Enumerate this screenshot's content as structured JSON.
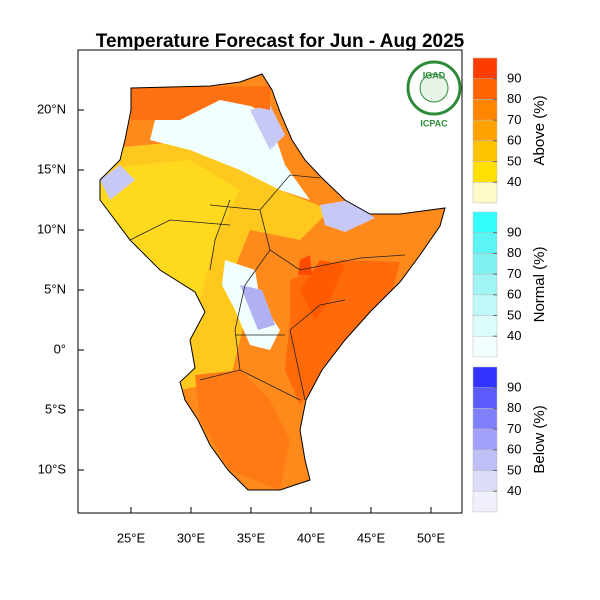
{
  "title": "Temperature Forecast for Jun - Aug 2025",
  "logo": {
    "top": "IGAD",
    "bottom": "ICPAC"
  },
  "map": {
    "lon_ticks": [
      {
        "value": 25,
        "label": "25°E"
      },
      {
        "value": 30,
        "label": "30°E"
      },
      {
        "value": 35,
        "label": "35°E"
      },
      {
        "value": 40,
        "label": "40°E"
      },
      {
        "value": 45,
        "label": "45°E"
      },
      {
        "value": 50,
        "label": "50°E"
      }
    ],
    "lat_ticks": [
      {
        "value": 20,
        "label": "20°N"
      },
      {
        "value": 15,
        "label": "15°N"
      },
      {
        "value": 10,
        "label": "10°N"
      },
      {
        "value": 5,
        "label": "5°N"
      },
      {
        "value": 0,
        "label": "0°"
      },
      {
        "value": -5,
        "label": "5°S"
      },
      {
        "value": -10,
        "label": "10°S"
      }
    ]
  },
  "legend": [
    {
      "label": "Above (%)",
      "levels": [
        40,
        50,
        60,
        70,
        80,
        90
      ],
      "colors": [
        "#fffac8",
        "#ffe000",
        "#ffc300",
        "#ffa200",
        "#ff8400",
        "#ff6400",
        "#ff3c00"
      ]
    },
    {
      "label": "Normal (%)",
      "levels": [
        40,
        50,
        60,
        70,
        80,
        90
      ],
      "colors": [
        "#f2ffff",
        "#dcfcfc",
        "#c0f8f8",
        "#a0f4f4",
        "#80f0f0",
        "#5cf4f4",
        "#33ffff"
      ]
    },
    {
      "label": "Below (%)",
      "levels": [
        40,
        50,
        60,
        70,
        80,
        90
      ],
      "colors": [
        "#f0f0fc",
        "#dcdcf8",
        "#c0c0f8",
        "#a0a0f8",
        "#8080fa",
        "#5c5cfc",
        "#3333ff"
      ]
    }
  ]
}
